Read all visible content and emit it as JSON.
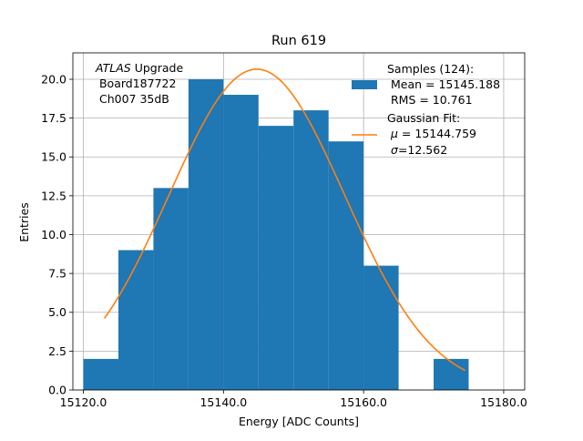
{
  "chart_data": {
    "type": "bar",
    "title": "Run 619",
    "xlabel": "Energy [ADC Counts]",
    "ylabel": "Entries",
    "xlim": [
      15118.5,
      15183
    ],
    "ylim": [
      0,
      21.7
    ],
    "grid": true,
    "x_ticks": [
      15120,
      15140,
      15160,
      15180
    ],
    "x_tick_labels": [
      "15120.0",
      "15140.0",
      "15160.0",
      "15180.0"
    ],
    "y_ticks": [
      0,
      2.5,
      5,
      7.5,
      10,
      12.5,
      15,
      17.5,
      20
    ],
    "y_tick_labels": [
      "0.0",
      "2.5",
      "5.0",
      "7.5",
      "10.0",
      "12.5",
      "15.0",
      "17.5",
      "20.0"
    ],
    "bins": [
      {
        "x0": 15120,
        "x1": 15125,
        "count": 2
      },
      {
        "x0": 15125,
        "x1": 15130,
        "count": 9
      },
      {
        "x0": 15130,
        "x1": 15135,
        "count": 13
      },
      {
        "x0": 15135,
        "x1": 15140,
        "count": 20
      },
      {
        "x0": 15140,
        "x1": 15145,
        "count": 19
      },
      {
        "x0": 15145,
        "x1": 15150,
        "count": 17
      },
      {
        "x0": 15150,
        "x1": 15155,
        "count": 18
      },
      {
        "x0": 15155,
        "x1": 15160,
        "count": 16
      },
      {
        "x0": 15160,
        "x1": 15165,
        "count": 8
      },
      {
        "x0": 15165,
        "x1": 15170,
        "count": 0
      },
      {
        "x0": 15170,
        "x1": 15175,
        "count": 2
      }
    ],
    "fit": {
      "mu": 15144.759,
      "sigma": 12.562,
      "amplitude": 20.65,
      "x_range": [
        15123,
        15174.5
      ]
    },
    "colors": {
      "bars": "#1f77b4",
      "fit": "#ff7f0e",
      "grid": "#b0b0b0"
    },
    "annotation": {
      "italic": "ATLAS",
      "normal": " Upgrade",
      "line2": " Board187722",
      "line3": " Ch007 35dB"
    },
    "legend": {
      "position": "top-right",
      "samples": {
        "title": "Samples (124):",
        "mean": " Mean = 15145.188",
        "rms": " RMS = 10.761"
      },
      "fit": {
        "title": "Gaussian Fit:",
        "mu_value": " = 15144.759",
        "sigma_value": "=12.562"
      }
    }
  }
}
